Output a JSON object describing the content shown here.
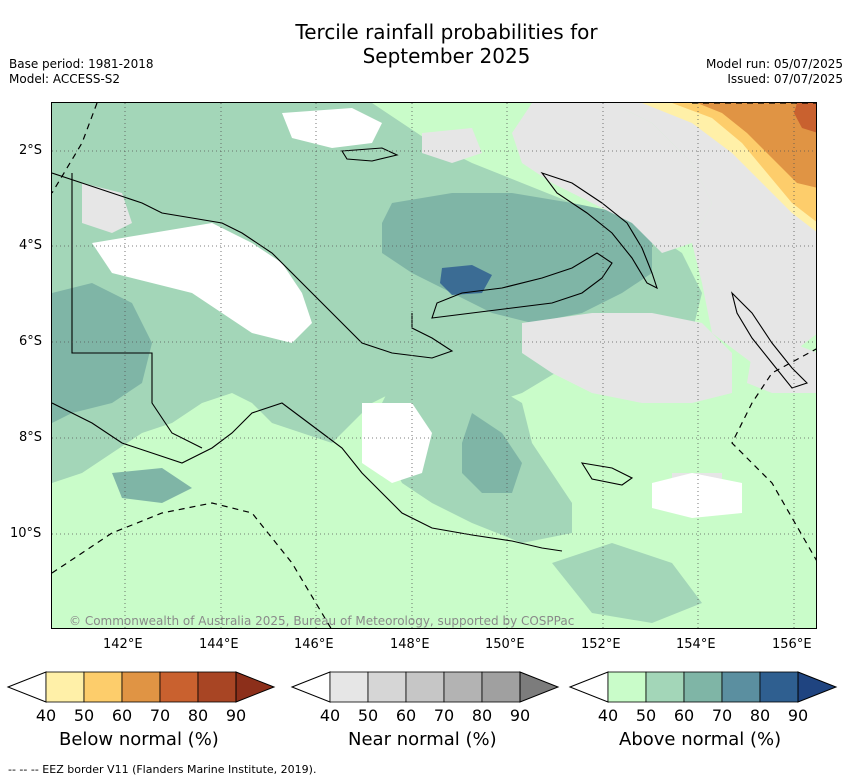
{
  "header": {
    "title_line1": "Tercile rainfall probabilities for",
    "title_line2": "September 2025",
    "base_period": "Base period: 1981-2018",
    "model": "Model: ACCESS-S2",
    "model_run": "Model run: 05/07/2025",
    "issued": "Issued: 07/07/2025"
  },
  "map": {
    "lat_labels": [
      "2°S",
      "4°S",
      "6°S",
      "8°S",
      "10°S"
    ],
    "lon_labels": [
      "142°E",
      "144°E",
      "146°E",
      "148°E",
      "150°E",
      "152°E",
      "154°E",
      "156°E"
    ],
    "copyright": "© Commonwealth of Australia 2025, Bureau of Meteorology, supported by COSPPac"
  },
  "legend": {
    "below": {
      "title": "Below normal (%)",
      "ticks": [
        "40",
        "50",
        "60",
        "70",
        "80",
        "90"
      ],
      "colors": [
        "#ffffff",
        "#fff0a8",
        "#fdcd6b",
        "#e09444",
        "#c9612f",
        "#a84524",
        "#8c2f1a"
      ]
    },
    "near": {
      "title": "Near normal (%)",
      "ticks": [
        "40",
        "50",
        "60",
        "70",
        "80",
        "90"
      ],
      "colors": [
        "#ffffff",
        "#e6e6e6",
        "#d6d6d6",
        "#c6c6c6",
        "#b3b3b3",
        "#a0a0a0",
        "#7c7c7c"
      ]
    },
    "above": {
      "title": "Above normal (%)",
      "ticks": [
        "40",
        "50",
        "60",
        "70",
        "80",
        "90"
      ],
      "colors": [
        "#ffffff",
        "#c9fcc9",
        "#a3d6b8",
        "#7fb5a6",
        "#5b8fa0",
        "#2f5f90",
        "#1f4480"
      ]
    }
  },
  "footer": "-- -- -- EEZ border V11 (Flanders Marine Institute, 2019)."
}
